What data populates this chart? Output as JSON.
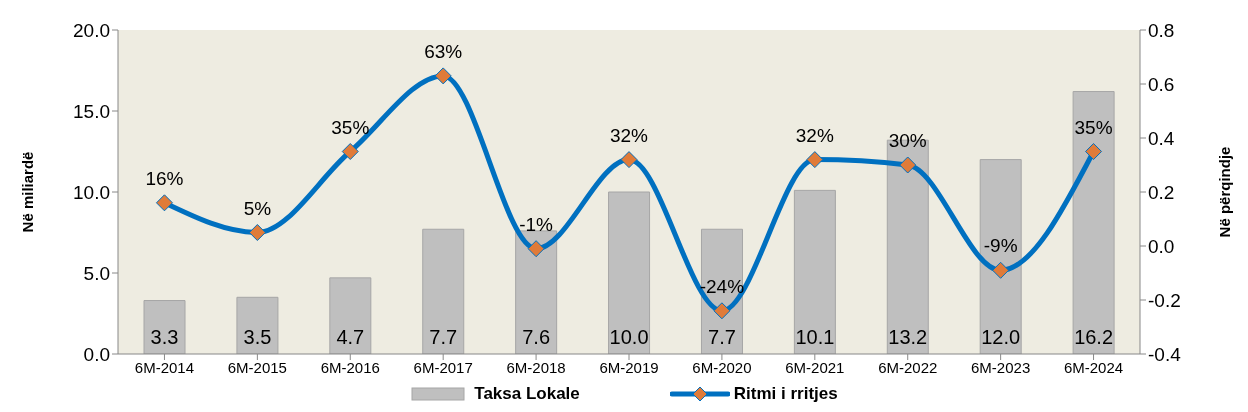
{
  "chart_data": {
    "type": "bar",
    "categories": [
      "6M-2014",
      "6M-2015",
      "6M-2016",
      "6M-2017",
      "6M-2018",
      "6M-2019",
      "6M-2020",
      "6M-2021",
      "6M-2022",
      "6M-2023",
      "6M-2024"
    ],
    "ylabel": "Në miliardë",
    "y2label": "Në përqindje",
    "ylim": [
      0,
      20
    ],
    "yticks": [
      {
        "value": 0,
        "label": "0.0"
      },
      {
        "value": 5,
        "label": "5.0"
      },
      {
        "value": 10,
        "label": "10.0"
      },
      {
        "value": 15,
        "label": "15.0"
      },
      {
        "value": 20,
        "label": "20.0"
      }
    ],
    "y2lim": [
      -0.4,
      0.8
    ],
    "y2ticks": [
      -0.4,
      -0.2,
      {
        "value": 0,
        "label": "0.0"
      },
      0.2,
      0.4,
      0.6,
      0.8
    ],
    "legend": "bottom",
    "marker": "diamond",
    "series": [
      {
        "name": "Taksa Lokale",
        "color": "#bfbfbf",
        "values": [
          3.3,
          3.5,
          4.7,
          7.7,
          7.6,
          10.0,
          7.7,
          10.1,
          13.2,
          12.0,
          16.2
        ],
        "value_labels": [
          "3.3",
          "3.5",
          "4.7",
          "7.7",
          "7.6",
          "10.0",
          "7.7",
          "10.1",
          "13.2",
          "12.0",
          "16.2"
        ]
      },
      {
        "name": "Ritmi i rritjes",
        "type": "line",
        "axis": "y2",
        "color": "#0070c0",
        "values": [
          0.16,
          0.05,
          0.35,
          0.63,
          -0.01,
          0.32,
          -0.24,
          0.32,
          0.3,
          -0.09,
          0.35
        ],
        "value_labels": [
          "16%",
          "5%",
          "35%",
          "63%",
          "-1%",
          "32%",
          "-24%",
          "32%",
          "30%",
          "-9%",
          "35%"
        ]
      }
    ]
  }
}
